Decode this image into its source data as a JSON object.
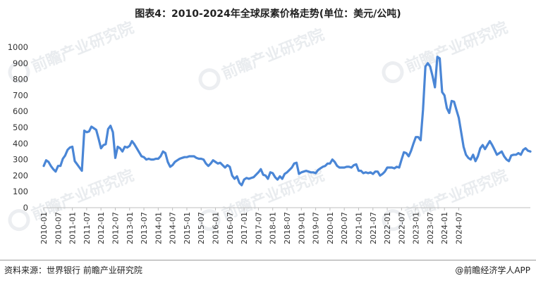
{
  "title": "图表4：2010-2024年全球尿素价格走势(单位：美元/公吨)",
  "source": "资料来源：世界银行 前瞻产业研究院",
  "credit": "@前瞻经济学人APP",
  "watermark": "前瞻产业研究院",
  "colors": {
    "line": "#4a86d6",
    "axis": "#bfbfbf",
    "text": "#333333"
  },
  "chart_data": {
    "type": "line",
    "title": "图表4：2010-2024年全球尿素价格走势(单位：美元/公吨)",
    "ylim": [
      0,
      1000
    ],
    "y_ticks": [
      0,
      100,
      200,
      300,
      400,
      500,
      600,
      700,
      800,
      900,
      1000
    ],
    "grid": false,
    "legend": "none",
    "x_tick_labels": [
      "2010-01",
      "2010-07",
      "2011-01",
      "2011-07",
      "2012-01",
      "2012-07",
      "2013-01",
      "2013-07",
      "2014-01",
      "2014-07",
      "2015-01",
      "2015-07",
      "2016-01",
      "2016-07",
      "2017-01",
      "2017-07",
      "2018-01",
      "2018-07",
      "2019-01",
      "2019-07",
      "2020-01",
      "2020-07",
      "2021-01",
      "2021-07",
      "2022-01",
      "2022-07",
      "2023-01",
      "2023-07",
      "2024-01",
      "2024-07"
    ],
    "x_start": "2010-01",
    "values": [
      260,
      295,
      285,
      260,
      240,
      225,
      260,
      260,
      305,
      325,
      360,
      375,
      380,
      290,
      270,
      250,
      230,
      480,
      470,
      475,
      505,
      495,
      485,
      430,
      370,
      390,
      395,
      490,
      510,
      470,
      310,
      380,
      370,
      350,
      380,
      375,
      385,
      415,
      395,
      370,
      345,
      320,
      315,
      300,
      305,
      300,
      300,
      305,
      305,
      320,
      350,
      340,
      285,
      255,
      265,
      285,
      295,
      305,
      310,
      315,
      315,
      320,
      320,
      320,
      310,
      305,
      305,
      300,
      275,
      260,
      275,
      295,
      285,
      275,
      280,
      265,
      250,
      265,
      255,
      200,
      180,
      195,
      155,
      140,
      175,
      185,
      180,
      185,
      190,
      205,
      220,
      240,
      205,
      200,
      180,
      220,
      215,
      190,
      175,
      195,
      180,
      210,
      220,
      235,
      250,
      275,
      280,
      210,
      220,
      225,
      230,
      225,
      220,
      220,
      215,
      235,
      245,
      255,
      260,
      275,
      275,
      300,
      285,
      260,
      250,
      250,
      250,
      255,
      255,
      250,
      265,
      270,
      230,
      230,
      215,
      220,
      215,
      220,
      210,
      225,
      225,
      200,
      210,
      225,
      250,
      250,
      250,
      245,
      255,
      250,
      300,
      345,
      340,
      320,
      355,
      400,
      440,
      440,
      420,
      610,
      880,
      900,
      880,
      820,
      750,
      940,
      930,
      720,
      700,
      620,
      590,
      665,
      660,
      610,
      560,
      470,
      380,
      330,
      310,
      300,
      330,
      290,
      320,
      370,
      390,
      365,
      390,
      415,
      390,
      360,
      330,
      340,
      350,
      320,
      300,
      290,
      325,
      330,
      330,
      340,
      330,
      360,
      370,
      355,
      350
    ]
  }
}
